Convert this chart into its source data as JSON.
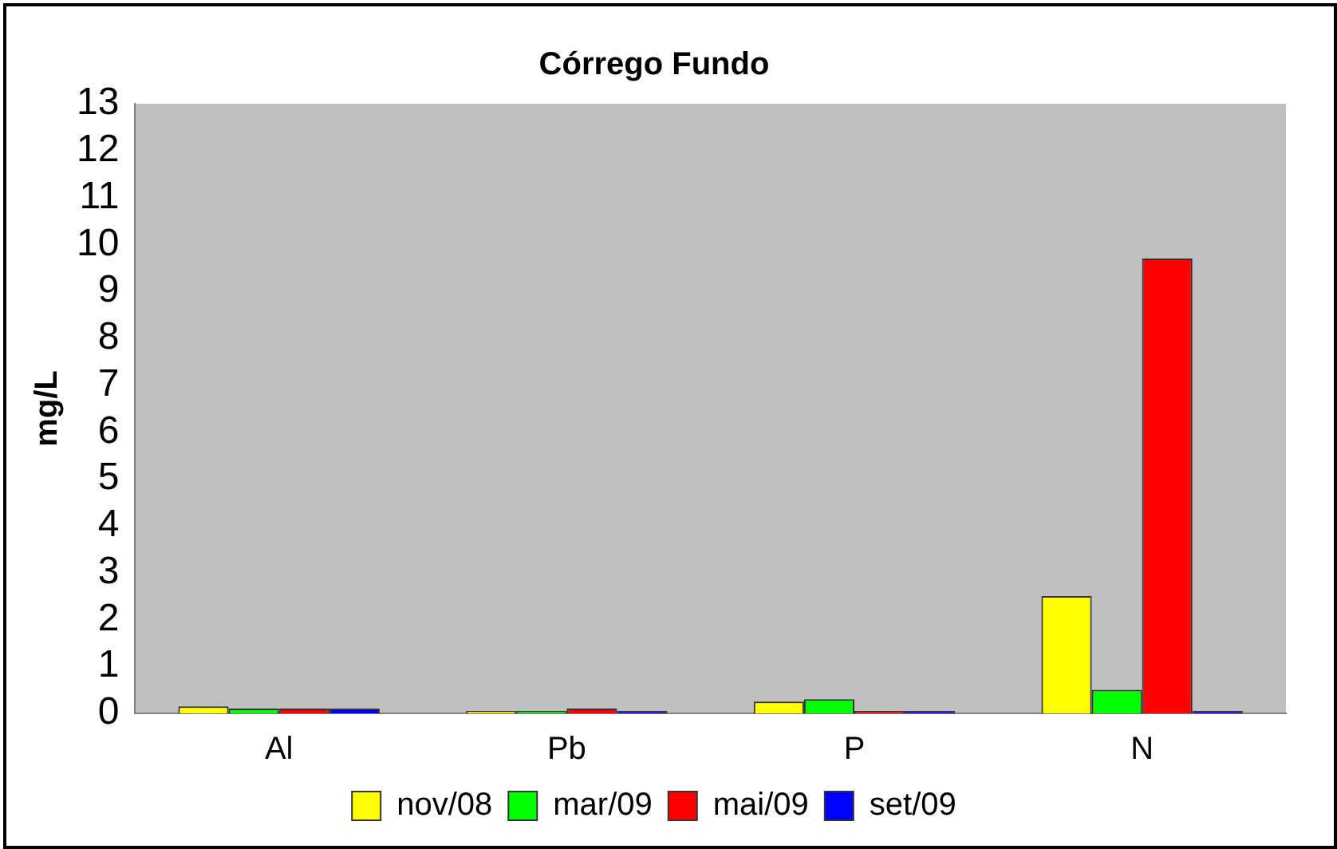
{
  "chart_data": {
    "type": "bar",
    "title": "Córrego Fundo",
    "ylabel": "mg/L",
    "categories": [
      "Al",
      "Pb",
      "P",
      "N"
    ],
    "series": [
      {
        "name": "nov/08",
        "color": "#ffff00",
        "values": [
          0.15,
          0.05,
          0.25,
          2.5
        ]
      },
      {
        "name": "mar/09",
        "color": "#00ff00",
        "values": [
          0.1,
          0.05,
          0.3,
          0.5
        ]
      },
      {
        "name": "mai/09",
        "color": "#ff0000",
        "values": [
          0.1,
          0.1,
          0.05,
          9.7
        ]
      },
      {
        "name": "set/09",
        "color": "#0000ff",
        "values": [
          0.1,
          0.05,
          0.05,
          0.05
        ]
      }
    ],
    "ylim": [
      0,
      13
    ],
    "yticks": [
      0,
      1,
      2,
      3,
      4,
      5,
      6,
      7,
      8,
      9,
      10,
      11,
      12,
      13
    ],
    "grid": false,
    "legend": "bottom"
  }
}
